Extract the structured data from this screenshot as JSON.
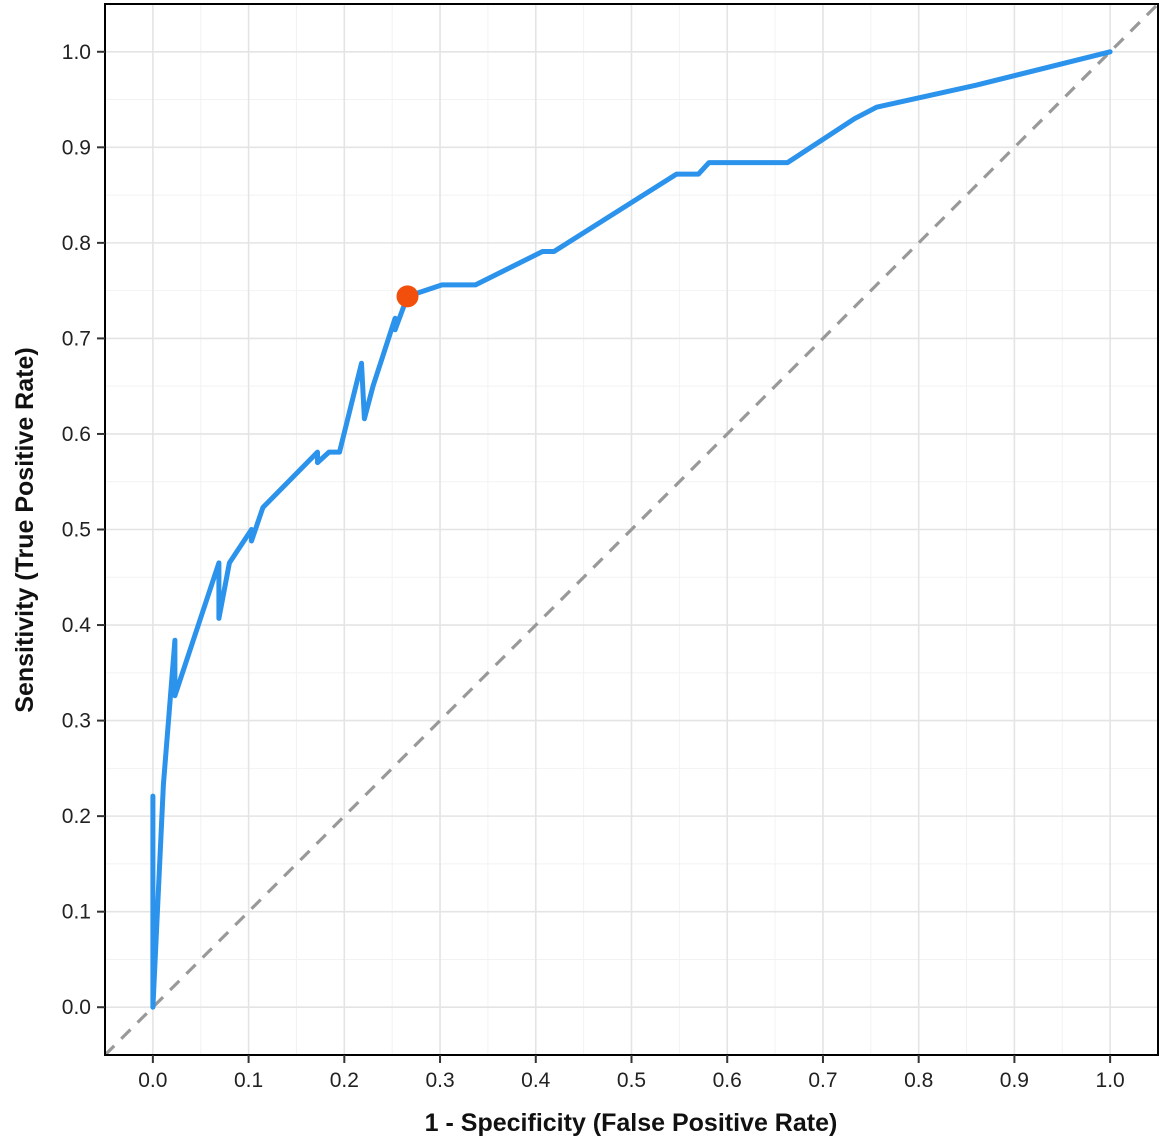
{
  "chart_data": {
    "type": "line",
    "title": "",
    "xlabel": "1 - Specificity (False Positive Rate)",
    "ylabel": "Sensitivity (True Positive Rate)",
    "xlim": [
      -0.05,
      1.05
    ],
    "ylim": [
      -0.05,
      1.05
    ],
    "x_ticks": [
      "0.0",
      "0.1",
      "0.2",
      "0.3",
      "0.4",
      "0.5",
      "0.6",
      "0.7",
      "0.8",
      "0.9",
      "1.0"
    ],
    "y_ticks": [
      "0.0",
      "0.1",
      "0.2",
      "0.3",
      "0.4",
      "0.5",
      "0.6",
      "0.7",
      "0.8",
      "0.9",
      "1.0"
    ],
    "grid": true,
    "series": [
      {
        "color": "#2b93ec",
        "x": [
          0.0,
          0.0,
          0.0,
          0.011,
          0.023,
          0.023,
          0.069,
          0.069,
          0.08,
          0.103,
          0.103,
          0.115,
          0.172,
          0.172,
          0.184,
          0.195,
          0.218,
          0.221,
          0.23,
          0.253,
          0.253,
          0.266,
          0.302,
          0.337,
          0.407,
          0.419,
          0.547,
          0.57,
          0.581,
          0.663,
          0.733,
          0.756,
          0.86,
          1.0
        ],
        "y": [
          0.0,
          0.221,
          0.0,
          0.233,
          0.384,
          0.326,
          0.465,
          0.407,
          0.465,
          0.5,
          0.488,
          0.523,
          0.581,
          0.57,
          0.581,
          0.581,
          0.674,
          0.616,
          0.65,
          0.721,
          0.709,
          0.744,
          0.756,
          0.756,
          0.791,
          0.791,
          0.872,
          0.872,
          0.884,
          0.884,
          0.93,
          0.942,
          0.965,
          1.0
        ]
      }
    ],
    "reference_line": {
      "x": [
        0.0,
        1.0
      ],
      "y": [
        0.0,
        1.0
      ],
      "color": "#999999",
      "style": "dashed"
    },
    "highlight_point": {
      "x": 0.266,
      "y": 0.744,
      "color": "#f24f0c"
    }
  }
}
